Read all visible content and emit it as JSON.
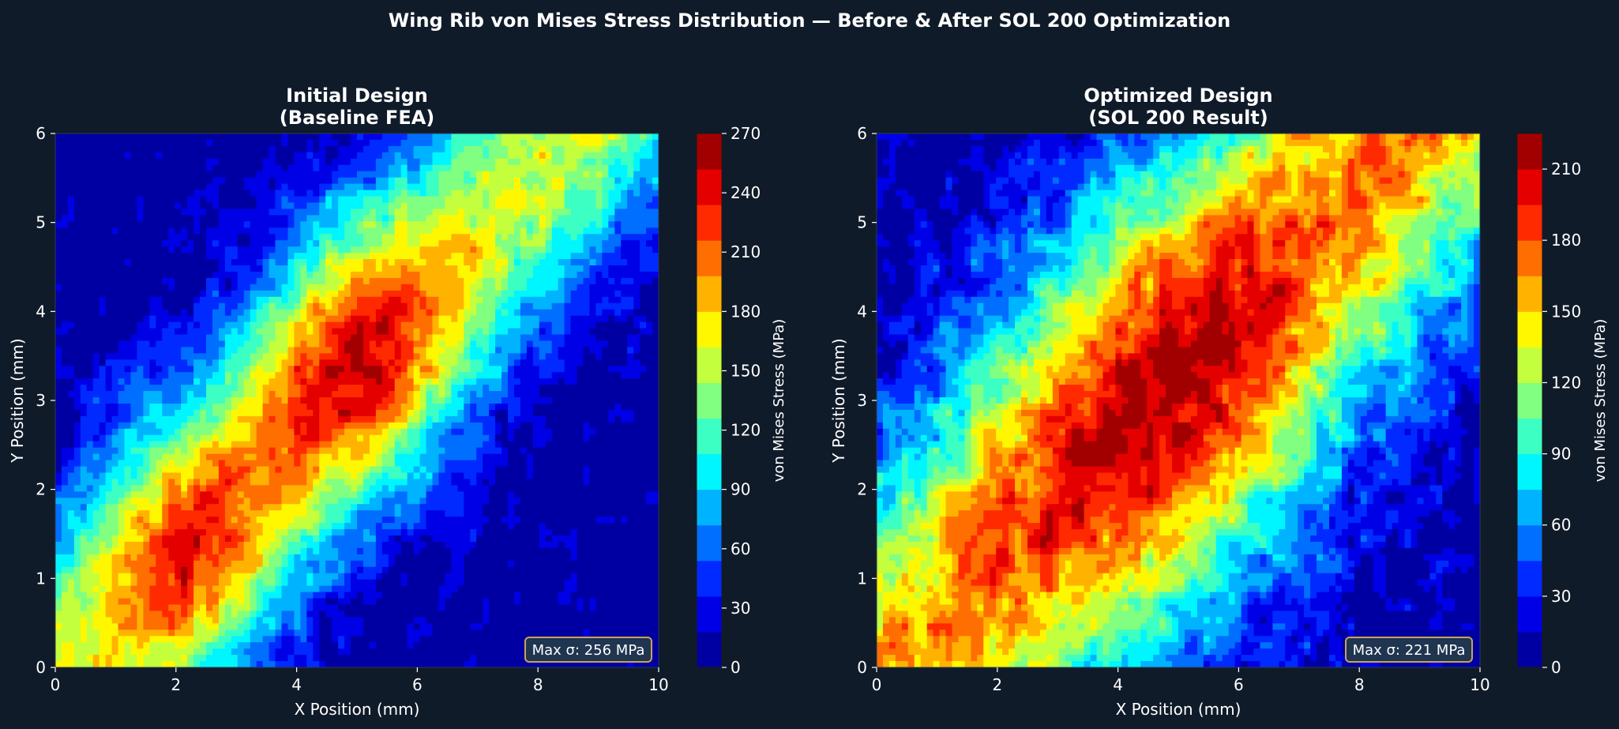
{
  "suptitle": "Wing Rib von Mises Stress Distribution — Before & After SOL 200 Optimization",
  "chart_data": [
    {
      "type": "heatmap",
      "subtype": "filled-contour",
      "title_line1": "Initial Design",
      "title_line2": "(Baseline FEA)",
      "xlabel": "X Position (mm)",
      "ylabel": "Y Position (mm)",
      "xlim": [
        0,
        10
      ],
      "ylim": [
        0,
        6
      ],
      "xticks": [
        "0",
        "2",
        "4",
        "6",
        "8",
        "10"
      ],
      "yticks": [
        "0",
        "1",
        "2",
        "3",
        "4",
        "5",
        "6"
      ],
      "colorbar_label": "von Mises Stress (MPa)",
      "colorbar_range": [
        0,
        270
      ],
      "colorbar_ticks": [
        "0",
        "30",
        "60",
        "90",
        "120",
        "150",
        "180",
        "210",
        "240",
        "270"
      ],
      "colormap": "jet",
      "hotspots": [
        {
          "x": 2.2,
          "y": 1.4,
          "peak_mpa": 235
        },
        {
          "x": 5.0,
          "y": 3.5,
          "peak_mpa": 256
        }
      ],
      "ridge_from": [
        1.5,
        0.8
      ],
      "ridge_to": [
        8.5,
        6.0
      ],
      "annotation": "Max σ: 256 MPa"
    },
    {
      "type": "heatmap",
      "subtype": "filled-contour",
      "title_line1": "Optimized Design",
      "title_line2": "(SOL 200 Result)",
      "xlabel": "X Position (mm)",
      "ylabel": "Y Position (mm)",
      "xlim": [
        0,
        10
      ],
      "ylim": [
        0,
        6
      ],
      "xticks": [
        "0",
        "2",
        "4",
        "6",
        "8",
        "10"
      ],
      "yticks": [
        "0",
        "1",
        "2",
        "3",
        "4",
        "5",
        "6"
      ],
      "colorbar_label": "von Mises Stress (MPa)",
      "colorbar_range": [
        0,
        225
      ],
      "colorbar_ticks": [
        "0",
        "30",
        "60",
        "90",
        "120",
        "150",
        "180",
        "210"
      ],
      "colormap": "jet",
      "hotspots": [
        {
          "x": 4.8,
          "y": 3.0,
          "peak_mpa": 221
        }
      ],
      "ridge_from": [
        1.5,
        0.8
      ],
      "ridge_to": [
        8.0,
        5.5
      ],
      "annotation": "Max σ: 221 MPa"
    }
  ],
  "colors": {
    "background": "#101b2a",
    "annotation_bg": "#1f3550",
    "annotation_border": "#c9a35c"
  }
}
